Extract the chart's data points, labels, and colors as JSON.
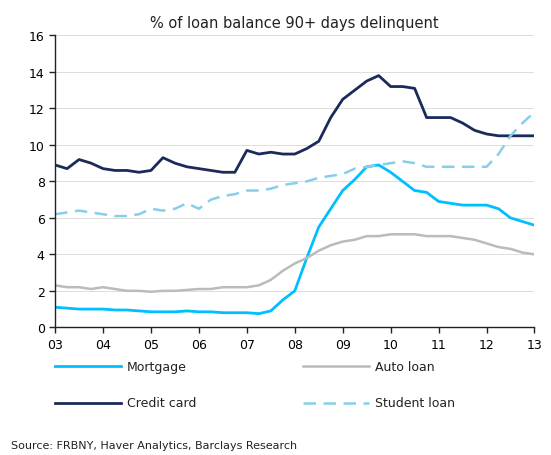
{
  "title": "% of loan balance 90+ days delinquent",
  "source": "Source: FRBNY, Haver Analytics, Barclays Research",
  "xlim": [
    0,
    40
  ],
  "ylim": [
    0,
    16
  ],
  "yticks": [
    0,
    2,
    4,
    6,
    8,
    10,
    12,
    14,
    16
  ],
  "xtick_labels": [
    "03",
    "04",
    "05",
    "06",
    "07",
    "08",
    "09",
    "10",
    "11",
    "12",
    "13"
  ],
  "xtick_positions": [
    0,
    4,
    8,
    12,
    16,
    20,
    24,
    28,
    32,
    36,
    40
  ],
  "mortgage": {
    "color": "#00BFFF",
    "label": "Mortgage",
    "x": [
      0,
      1,
      2,
      3,
      4,
      5,
      6,
      7,
      8,
      9,
      10,
      11,
      12,
      13,
      14,
      15,
      16,
      17,
      18,
      19,
      20,
      21,
      22,
      23,
      24,
      25,
      26,
      27,
      28,
      29,
      30,
      31,
      32,
      33,
      34,
      35,
      36,
      37,
      38,
      39,
      40
    ],
    "y": [
      1.1,
      1.05,
      1.0,
      1.0,
      1.0,
      0.95,
      0.95,
      0.9,
      0.85,
      0.85,
      0.85,
      0.9,
      0.85,
      0.85,
      0.8,
      0.8,
      0.8,
      0.75,
      0.9,
      1.5,
      2.0,
      3.8,
      5.5,
      6.5,
      7.5,
      8.1,
      8.8,
      8.9,
      8.5,
      8.0,
      7.5,
      7.4,
      6.9,
      6.8,
      6.7,
      6.7,
      6.7,
      6.5,
      6.0,
      5.8,
      5.6
    ]
  },
  "auto_loan": {
    "color": "#BBBBBB",
    "label": "Auto loan",
    "x": [
      0,
      1,
      2,
      3,
      4,
      5,
      6,
      7,
      8,
      9,
      10,
      11,
      12,
      13,
      14,
      15,
      16,
      17,
      18,
      19,
      20,
      21,
      22,
      23,
      24,
      25,
      26,
      27,
      28,
      29,
      30,
      31,
      32,
      33,
      34,
      35,
      36,
      37,
      38,
      39,
      40
    ],
    "y": [
      2.3,
      2.2,
      2.2,
      2.1,
      2.2,
      2.1,
      2.0,
      2.0,
      1.95,
      2.0,
      2.0,
      2.05,
      2.1,
      2.1,
      2.2,
      2.2,
      2.2,
      2.3,
      2.6,
      3.1,
      3.5,
      3.8,
      4.2,
      4.5,
      4.7,
      4.8,
      5.0,
      5.0,
      5.1,
      5.1,
      5.1,
      5.0,
      5.0,
      5.0,
      4.9,
      4.8,
      4.6,
      4.4,
      4.3,
      4.1,
      4.0
    ]
  },
  "credit_card": {
    "color": "#1B2A5A",
    "label": "Credit card",
    "x": [
      0,
      1,
      2,
      3,
      4,
      5,
      6,
      7,
      8,
      9,
      10,
      11,
      12,
      13,
      14,
      15,
      16,
      17,
      18,
      19,
      20,
      21,
      22,
      23,
      24,
      25,
      26,
      27,
      28,
      29,
      30,
      31,
      32,
      33,
      34,
      35,
      36,
      37,
      38,
      39,
      40
    ],
    "y": [
      8.9,
      8.7,
      9.2,
      9.0,
      8.7,
      8.6,
      8.6,
      8.5,
      8.6,
      9.3,
      9.0,
      8.8,
      8.7,
      8.6,
      8.5,
      8.5,
      9.7,
      9.5,
      9.6,
      9.5,
      9.5,
      9.8,
      10.2,
      11.5,
      12.5,
      13.0,
      13.5,
      13.8,
      13.2,
      13.2,
      13.1,
      11.5,
      11.5,
      11.5,
      11.2,
      10.8,
      10.6,
      10.5,
      10.5,
      10.5,
      10.5
    ]
  },
  "student_loan": {
    "color": "#87CEEB",
    "label": "Student loan",
    "x": [
      0,
      1,
      2,
      3,
      4,
      5,
      6,
      7,
      8,
      9,
      10,
      11,
      12,
      13,
      14,
      15,
      16,
      17,
      18,
      19,
      20,
      21,
      22,
      23,
      24,
      25,
      26,
      27,
      28,
      29,
      30,
      31,
      32,
      33,
      34,
      35,
      36,
      37,
      38,
      39,
      40
    ],
    "y": [
      6.2,
      6.3,
      6.4,
      6.3,
      6.2,
      6.1,
      6.1,
      6.2,
      6.5,
      6.4,
      6.5,
      6.8,
      6.5,
      7.0,
      7.2,
      7.3,
      7.5,
      7.5,
      7.6,
      7.8,
      7.9,
      8.0,
      8.2,
      8.3,
      8.4,
      8.7,
      8.8,
      8.9,
      9.0,
      9.1,
      9.0,
      8.8,
      8.8,
      8.8,
      8.8,
      8.8,
      8.8,
      9.5,
      10.5,
      11.2,
      11.8
    ]
  }
}
